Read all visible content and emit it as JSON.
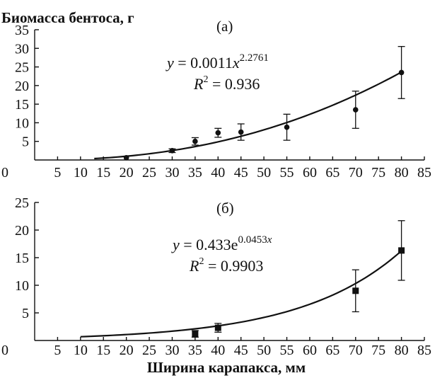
{
  "chart_data": [
    {
      "type": "scatter",
      "panel_label": "(а)",
      "ylabel": "Биомасса бентоса, г",
      "xlabel": "",
      "xlim": [
        0,
        85
      ],
      "ylim": [
        0,
        35
      ],
      "x_ticks": [
        "0",
        "5",
        "10",
        "15",
        "20",
        "25",
        "30",
        "35",
        "40",
        "45",
        "50",
        "55",
        "60",
        "65",
        "70",
        "75",
        "80",
        "85"
      ],
      "y_ticks": [
        "5",
        "10",
        "15",
        "20",
        "25",
        "30",
        "35"
      ],
      "marker": "circle",
      "series": [
        {
          "points": [
            {
              "x": 20,
              "y": 0.6,
              "err": 0
            },
            {
              "x": 30,
              "y": 2.5,
              "err": 0.5
            },
            {
              "x": 35,
              "y": 5.0,
              "err": 1.0
            },
            {
              "x": 40,
              "y": 7.3,
              "err": 1.2
            },
            {
              "x": 45,
              "y": 7.5,
              "err": 2.2
            },
            {
              "x": 55,
              "y": 8.8,
              "err": 3.5
            },
            {
              "x": 70,
              "y": 13.5,
              "err": 5.0
            },
            {
              "x": 80,
              "y": 23.5,
              "err": 7.0
            }
          ]
        }
      ],
      "fit": {
        "model": "power",
        "a": 0.0011,
        "b": 2.2761,
        "x_from": 13,
        "x_to": 80
      },
      "equation": {
        "y": "y",
        "lhs_rest": " = 0.0011",
        "base": "x",
        "exponent": "2.2761",
        "r2_label": "R",
        "r2_sup": "2",
        "r2_value": " = 0.936"
      }
    },
    {
      "type": "scatter",
      "panel_label": "(б)",
      "ylabel": "",
      "xlabel": "Ширина карапакса, мм",
      "xlim": [
        0,
        85
      ],
      "ylim": [
        0,
        25
      ],
      "x_ticks": [
        "0",
        "5",
        "10",
        "15",
        "20",
        "25",
        "30",
        "35",
        "40",
        "45",
        "50",
        "55",
        "60",
        "65",
        "70",
        "75",
        "80",
        "85"
      ],
      "y_ticks": [
        "5",
        "10",
        "15",
        "20",
        "25"
      ],
      "marker": "square",
      "series": [
        {
          "points": [
            {
              "x": 35,
              "y": 1.2,
              "err": 0.6
            },
            {
              "x": 40,
              "y": 2.3,
              "err": 0.8
            },
            {
              "x": 70,
              "y": 9.0,
              "err": 3.8
            },
            {
              "x": 80,
              "y": 16.3,
              "err": 5.4
            }
          ]
        }
      ],
      "fit": {
        "model": "exponential",
        "a": 0.433,
        "b": 0.0453,
        "x_from": 10,
        "x_to": 80
      },
      "equation": {
        "y": "y",
        "lhs_rest": " = 0.433e",
        "exponent": "0.0453",
        "exp_var": "x",
        "r2_label": "R",
        "r2_sup": "2",
        "r2_value": " = 0.9903"
      }
    }
  ]
}
